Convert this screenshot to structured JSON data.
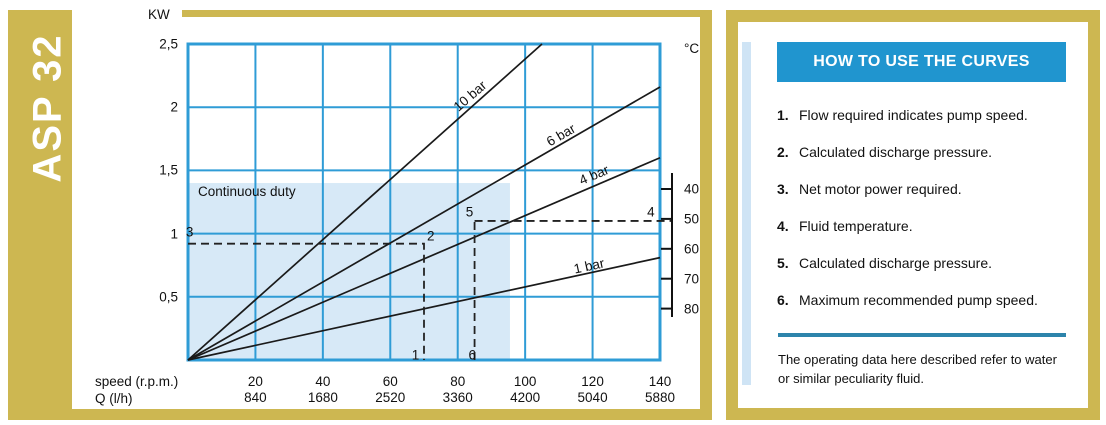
{
  "model_label": "ASP 32",
  "chart": {
    "power_axis_label": "KW",
    "power_ticks": [
      "2,5",
      "2",
      "1,5",
      "1",
      "0,5"
    ],
    "speed_axis_label": "speed (r.p.m.)",
    "flow_axis_label": "Q (l/h)",
    "speed_ticks": [
      "20",
      "40",
      "60",
      "80",
      "100",
      "120",
      "140"
    ],
    "flow_ticks": [
      "840",
      "1680",
      "2520",
      "3360",
      "4200",
      "5040",
      "5880"
    ],
    "temp_axis_label": "°C",
    "temp_ticks": [
      "40",
      "50",
      "60",
      "70",
      "80"
    ],
    "region_label": "Continuous duty"
  },
  "panel": {
    "title": "HOW TO USE THE CURVES",
    "steps": [
      {
        "num": "1.",
        "text": "Flow required indicates pump speed."
      },
      {
        "num": "2.",
        "text": "Calculated discharge pressure."
      },
      {
        "num": "3.",
        "text": "Net motor power required."
      },
      {
        "num": "4.",
        "text": "Fluid temperature."
      },
      {
        "num": "5.",
        "text": "Calculated discharge pressure."
      },
      {
        "num": "6.",
        "text": "Maximum recommended pump speed."
      }
    ],
    "footnote": "The operating data here described refer to water or similar peculiarity fluid."
  },
  "colors": {
    "gold": "#cdb751",
    "grid_blue": "#2f9cd6",
    "header_blue": "#2095cf",
    "shade_blue": "#d7e9f7",
    "stripe_blue": "#cfe4f5",
    "divider_blue": "#2d84ab",
    "curve_line": "#1a1a1a",
    "guide_line": "#222222"
  },
  "chart_data": {
    "type": "line",
    "title": "ASP 32 pump performance curves",
    "xlabel": "speed (r.p.m.)",
    "xlabel2": "Q (l/h)",
    "ylabel": "KW",
    "x_axis": {
      "ticks": [
        20,
        40,
        60,
        80,
        100,
        120,
        140
      ],
      "range": [
        0,
        140
      ]
    },
    "x_axis2": {
      "ticks": [
        840,
        1680,
        2520,
        3360,
        4200,
        5040,
        5880
      ]
    },
    "y_axis": {
      "ticks": [
        0.5,
        1,
        1.5,
        2,
        2.5
      ],
      "range": [
        0,
        2.5
      ]
    },
    "temp_axis": {
      "label": "°C",
      "ticks": [
        40,
        50,
        60,
        70,
        80
      ]
    },
    "grid": true,
    "series": [
      {
        "name": "10 bar",
        "points": [
          [
            0,
            0
          ],
          [
            105,
            2.5
          ]
        ],
        "label_pos": [
          83.5,
          2.09
        ],
        "label_angle": -41
      },
      {
        "name": "6 bar",
        "points": [
          [
            0,
            0
          ],
          [
            140,
            2.16
          ]
        ],
        "label_pos": [
          110.5,
          1.78
        ],
        "label_angle": -30
      },
      {
        "name": "4 bar",
        "points": [
          [
            0,
            0
          ],
          [
            140,
            1.6
          ]
        ],
        "label_pos": [
          120.5,
          1.46
        ],
        "label_angle": -23
      },
      {
        "name": "1 bar",
        "points": [
          [
            0,
            0
          ],
          [
            140,
            0.81
          ]
        ],
        "label_pos": [
          119,
          0.74
        ],
        "label_angle": -12
      }
    ],
    "continuous_duty_region": {
      "x_range": [
        0,
        95.5
      ],
      "y_range": [
        0,
        1.4
      ],
      "label": "Continuous duty"
    },
    "guides": [
      {
        "points": [
          [
            0,
            0.92
          ],
          [
            70,
            0.92
          ],
          [
            70,
            0
          ]
        ]
      },
      {
        "points": [
          [
            85,
            0
          ],
          [
            85,
            1.1
          ]
        ],
        "extend_to_temp_axis_at_kw": 1.1,
        "temp_reading": 50
      }
    ],
    "markers": [
      {
        "label": "1",
        "x": 67.5,
        "y": 0.04
      },
      {
        "label": "2",
        "x": 72,
        "y": 0.98
      },
      {
        "label": "3",
        "x": 0.5,
        "y": 1.01
      },
      {
        "label": "4",
        "x": 137.3,
        "y": 1.17
      },
      {
        "label": "5",
        "x": 83.5,
        "y": 1.17
      },
      {
        "label": "6",
        "x": 84.3,
        "y": 0.04
      }
    ]
  }
}
